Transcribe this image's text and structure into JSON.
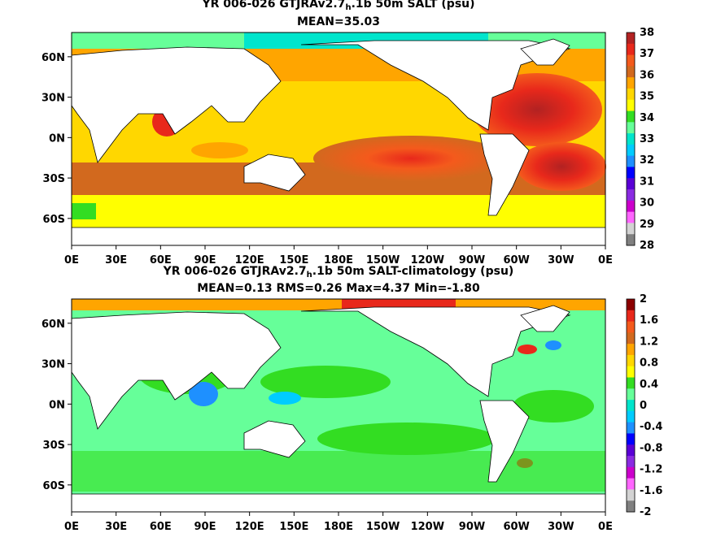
{
  "chart_data": [
    {
      "type": "heatmap",
      "title_prefix": "YR 006-026 GTJRAv2.7",
      "title_sub": "h",
      "title_suffix": ".1b 50m SALT (psu)",
      "subtitle": "MEAN=35.03",
      "x_ticks": [
        "0E",
        "30E",
        "60E",
        "90E",
        "120E",
        "150E",
        "180E",
        "150W",
        "120W",
        "90W",
        "60W",
        "30W",
        "0E"
      ],
      "y_ticks": [
        "60N",
        "30N",
        "0N",
        "30S",
        "60S"
      ],
      "colorbar_ticks": [
        "38",
        "37",
        "36",
        "35",
        "34",
        "33",
        "32",
        "31",
        "30",
        "29",
        "28"
      ],
      "colorbar_range": [
        28,
        38
      ],
      "colorbar_colors": [
        "#b22222",
        "#e8281b",
        "#f45a1c",
        "#d2691e",
        "#ffa500",
        "#ffd700",
        "#ffff00",
        "#33dd22",
        "#66ff99",
        "#00e5cc",
        "#00ccff",
        "#1e90ff",
        "#0000ff",
        "#5a00d6",
        "#8a2be2",
        "#cc00cc",
        "#ff66ff",
        "#d3d3d3",
        "#808080"
      ]
    },
    {
      "type": "heatmap",
      "title_prefix": "YR 006-026 GTJRAv2.7",
      "title_sub": "h",
      "title_suffix": ".1b 50m SALT-climatology (psu)",
      "subtitle": "MEAN=0.13   RMS=0.26   Max=4.37   Min=-1.80",
      "x_ticks": [
        "0E",
        "30E",
        "60E",
        "90E",
        "120E",
        "150E",
        "180E",
        "150W",
        "120W",
        "90W",
        "60W",
        "30W",
        "0E"
      ],
      "y_ticks": [
        "60N",
        "30N",
        "0N",
        "30S",
        "60S"
      ],
      "colorbar_ticks": [
        "2",
        "1.6",
        "1.2",
        "0.8",
        "0.4",
        "0",
        "-0.4",
        "-0.8",
        "-1.2",
        "-1.6",
        "-2"
      ],
      "colorbar_range": [
        -2,
        2
      ],
      "colorbar_colors": [
        "#8b0000",
        "#e8281b",
        "#f45a1c",
        "#d2691e",
        "#ffa500",
        "#ffd700",
        "#ffff00",
        "#33dd22",
        "#66ff99",
        "#00e5cc",
        "#00ccff",
        "#1e90ff",
        "#0000ff",
        "#5a00d6",
        "#8a2be2",
        "#cc00cc",
        "#ff66ff",
        "#d3d3d3",
        "#808080"
      ]
    }
  ]
}
